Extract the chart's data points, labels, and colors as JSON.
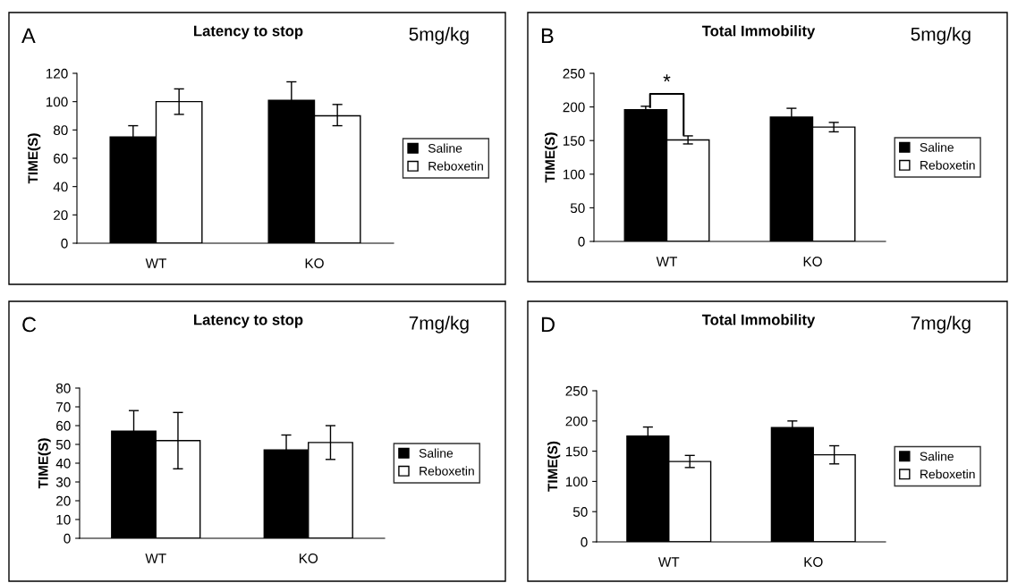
{
  "chart_data": [
    {
      "type": "bar",
      "title": "Latency to stop",
      "ylabel": "TIME(S)",
      "categories": [
        "WT",
        "KO"
      ],
      "ylim": [
        0,
        120
      ],
      "yticks": [
        0,
        20,
        40,
        60,
        80,
        100,
        120
      ],
      "grid": false,
      "legend": "right",
      "annotations": [
        "A",
        "5mg/kg"
      ],
      "series": [
        {
          "name": "Saline",
          "color": "#000000",
          "values": [
            75,
            101
          ],
          "errors": [
            8,
            13
          ]
        },
        {
          "name": "Reboxetin",
          "color": "#ffffff",
          "values": [
            100,
            90
          ],
          "errors": [
            9,
            [
              83,
              98
            ]
          ]
        }
      ]
    },
    {
      "type": "bar",
      "title": "Total Immobility",
      "ylabel": "TIME(S)",
      "categories": [
        "WT",
        "KO"
      ],
      "ylim": [
        0,
        250
      ],
      "yticks": [
        0,
        50,
        100,
        150,
        200,
        250
      ],
      "grid": false,
      "legend": "right",
      "annotations": [
        "B",
        "5mg/kg",
        "*"
      ],
      "series": [
        {
          "name": "Saline",
          "color": "#000000",
          "values": [
            196,
            185
          ],
          "errors": [
            5,
            13
          ]
        },
        {
          "name": "Reboxetin",
          "color": "#ffffff",
          "values": [
            151,
            170
          ],
          "errors": [
            6,
            7
          ]
        }
      ]
    },
    {
      "type": "bar",
      "title": "Latency to stop",
      "ylabel": "TIME(S)",
      "categories": [
        "WT",
        "KO"
      ],
      "ylim": [
        0,
        80
      ],
      "yticks": [
        0,
        10,
        20,
        30,
        40,
        50,
        60,
        70,
        80
      ],
      "grid": false,
      "legend": "right",
      "annotations": [
        "C",
        "7mg/kg"
      ],
      "series": [
        {
          "name": "Saline",
          "color": "#000000",
          "values": [
            57,
            47
          ],
          "errors": [
            11,
            8
          ]
        },
        {
          "name": "Reboxetin",
          "color": "#ffffff",
          "values": [
            52,
            51
          ],
          "errors": [
            15,
            9
          ]
        }
      ]
    },
    {
      "type": "bar",
      "title": "Total Immobility",
      "ylabel": "TIME(S)",
      "categories": [
        "WT",
        "KO"
      ],
      "ylim": [
        0,
        250
      ],
      "yticks": [
        0,
        50,
        100,
        150,
        200,
        250
      ],
      "grid": false,
      "legend": "right",
      "annotations": [
        "D",
        "7mg/kg"
      ],
      "series": [
        {
          "name": "Saline",
          "color": "#000000",
          "values": [
            175,
            189
          ],
          "errors": [
            15,
            11
          ]
        },
        {
          "name": "Reboxetin",
          "color": "#ffffff",
          "values": [
            133,
            144
          ],
          "errors": [
            10,
            15
          ]
        }
      ]
    }
  ]
}
